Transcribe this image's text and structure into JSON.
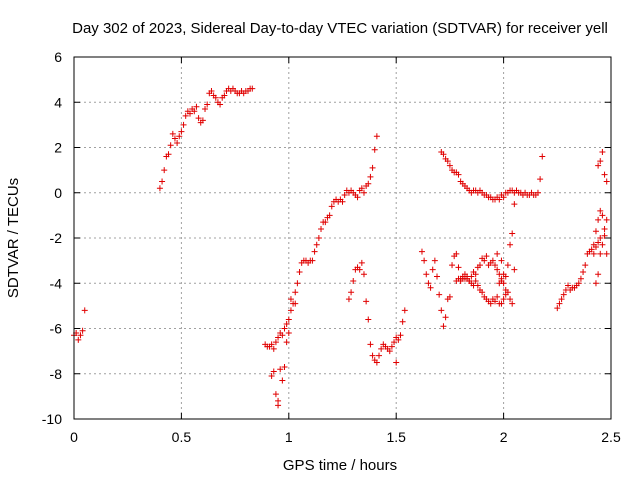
{
  "chart_data": {
    "type": "scatter",
    "title": "Day 302 of 2023, Sidereal Day-to-day VTEC variation (SDTVAR) for receiver yell",
    "xlabel": "GPS time / hours",
    "ylabel": "SDTVAR / TECUs",
    "xlim": [
      0,
      2.5
    ],
    "ylim": [
      -10,
      6
    ],
    "xticks": [
      0,
      0.5,
      1,
      1.5,
      2,
      2.5
    ],
    "xtick_labels": [
      "0",
      "0.5",
      "1",
      "1.5",
      "2",
      "2.5"
    ],
    "yticks": [
      -10,
      -8,
      -6,
      -4,
      -2,
      0,
      2,
      4,
      6
    ],
    "ytick_labels": [
      "-10",
      "-8",
      "-6",
      "-4",
      "-2",
      "0",
      "2",
      "4",
      "6"
    ],
    "grid": true,
    "marker": "plus",
    "color": "#e00000",
    "series": [
      {
        "name": "SDTVAR",
        "points": [
          [
            0.0,
            -6.3
          ],
          [
            0.01,
            -6.2
          ],
          [
            0.02,
            -6.5
          ],
          [
            0.03,
            -6.3
          ],
          [
            0.04,
            -6.1
          ],
          [
            0.05,
            -5.2
          ],
          [
            0.4,
            0.2
          ],
          [
            0.41,
            0.5
          ],
          [
            0.42,
            1.0
          ],
          [
            0.43,
            1.6
          ],
          [
            0.44,
            1.7
          ],
          [
            0.45,
            2.1
          ],
          [
            0.46,
            2.6
          ],
          [
            0.47,
            2.4
          ],
          [
            0.48,
            2.2
          ],
          [
            0.49,
            2.5
          ],
          [
            0.5,
            2.7
          ],
          [
            0.51,
            3.0
          ],
          [
            0.52,
            3.4
          ],
          [
            0.53,
            3.6
          ],
          [
            0.54,
            3.5
          ],
          [
            0.55,
            3.7
          ],
          [
            0.56,
            3.6
          ],
          [
            0.57,
            3.8
          ],
          [
            0.58,
            3.3
          ],
          [
            0.59,
            3.1
          ],
          [
            0.6,
            3.2
          ],
          [
            0.61,
            3.7
          ],
          [
            0.62,
            3.9
          ],
          [
            0.63,
            4.4
          ],
          [
            0.64,
            4.5
          ],
          [
            0.65,
            4.3
          ],
          [
            0.66,
            4.2
          ],
          [
            0.67,
            4.0
          ],
          [
            0.68,
            3.9
          ],
          [
            0.69,
            4.2
          ],
          [
            0.7,
            4.3
          ],
          [
            0.71,
            4.5
          ],
          [
            0.72,
            4.6
          ],
          [
            0.73,
            4.5
          ],
          [
            0.74,
            4.6
          ],
          [
            0.75,
            4.5
          ],
          [
            0.76,
            4.4
          ],
          [
            0.77,
            4.4
          ],
          [
            0.78,
            4.5
          ],
          [
            0.79,
            4.4
          ],
          [
            0.8,
            4.5
          ],
          [
            0.81,
            4.5
          ],
          [
            0.82,
            4.6
          ],
          [
            0.83,
            4.6
          ],
          [
            0.89,
            -6.7
          ],
          [
            0.9,
            -6.8
          ],
          [
            0.91,
            -6.8
          ],
          [
            0.92,
            -6.7
          ],
          [
            0.93,
            -6.9
          ],
          [
            0.94,
            -6.6
          ],
          [
            0.95,
            -6.4
          ],
          [
            0.96,
            -6.2
          ],
          [
            0.97,
            -6.3
          ],
          [
            0.98,
            -6.0
          ],
          [
            0.99,
            -5.8
          ],
          [
            1.0,
            -5.6
          ],
          [
            1.01,
            -5.2
          ],
          [
            1.02,
            -4.9
          ],
          [
            1.03,
            -4.4
          ],
          [
            1.04,
            -4.0
          ],
          [
            1.05,
            -3.5
          ],
          [
            1.06,
            -3.1
          ],
          [
            1.07,
            -3.0
          ],
          [
            1.08,
            -3.0
          ],
          [
            1.09,
            -3.1
          ],
          [
            1.1,
            -3.0
          ],
          [
            1.11,
            -3.0
          ],
          [
            1.12,
            -2.6
          ],
          [
            1.13,
            -2.3
          ],
          [
            1.14,
            -2.0
          ],
          [
            1.15,
            -1.6
          ],
          [
            1.16,
            -1.3
          ],
          [
            1.17,
            -1.3
          ],
          [
            1.18,
            -1.1
          ],
          [
            1.19,
            -1.0
          ],
          [
            1.2,
            -0.6
          ],
          [
            1.21,
            -0.4
          ],
          [
            1.22,
            -0.3
          ],
          [
            1.23,
            -0.4
          ],
          [
            1.24,
            -0.3
          ],
          [
            1.25,
            -0.4
          ],
          [
            1.26,
            -0.1
          ],
          [
            1.27,
            0.1
          ],
          [
            1.28,
            0.0
          ],
          [
            1.29,
            0.1
          ],
          [
            1.3,
            0.0
          ],
          [
            1.31,
            -0.1
          ],
          [
            1.32,
            -0.2
          ],
          [
            1.33,
            0.1
          ],
          [
            1.34,
            0.2
          ],
          [
            1.35,
            0.0
          ],
          [
            1.36,
            0.3
          ],
          [
            1.37,
            0.4
          ],
          [
            1.38,
            0.7
          ],
          [
            1.39,
            1.1
          ],
          [
            1.4,
            1.9
          ],
          [
            1.41,
            2.5
          ],
          [
            0.92,
            -8.1
          ],
          [
            0.93,
            -7.9
          ],
          [
            0.94,
            -8.9
          ],
          [
            0.95,
            -9.4
          ],
          [
            0.95,
            -9.2
          ],
          [
            0.96,
            -7.8
          ],
          [
            0.97,
            -8.3
          ],
          [
            0.98,
            -7.7
          ],
          [
            0.99,
            -6.6
          ],
          [
            1.0,
            -6.2
          ],
          [
            1.01,
            -4.7
          ],
          [
            1.03,
            -4.9
          ],
          [
            1.28,
            -4.7
          ],
          [
            1.29,
            -4.4
          ],
          [
            1.3,
            -3.9
          ],
          [
            1.31,
            -3.4
          ],
          [
            1.32,
            -3.3
          ],
          [
            1.33,
            -3.4
          ],
          [
            1.34,
            -3.1
          ],
          [
            1.35,
            -3.6
          ],
          [
            1.36,
            -4.8
          ],
          [
            1.37,
            -5.6
          ],
          [
            1.38,
            -6.7
          ],
          [
            1.39,
            -7.2
          ],
          [
            1.4,
            -7.4
          ],
          [
            1.41,
            -7.5
          ],
          [
            1.42,
            -7.2
          ],
          [
            1.43,
            -6.9
          ],
          [
            1.44,
            -6.7
          ],
          [
            1.45,
            -6.8
          ],
          [
            1.46,
            -6.9
          ],
          [
            1.47,
            -7.0
          ],
          [
            1.48,
            -6.8
          ],
          [
            1.49,
            -6.6
          ],
          [
            1.5,
            -6.4
          ],
          [
            1.51,
            -6.5
          ],
          [
            1.52,
            -6.3
          ],
          [
            1.53,
            -5.7
          ],
          [
            1.54,
            -5.2
          ],
          [
            1.5,
            -7.5
          ],
          [
            1.62,
            -2.6
          ],
          [
            1.63,
            -3.0
          ],
          [
            1.64,
            -3.6
          ],
          [
            1.65,
            -4.0
          ],
          [
            1.66,
            -4.2
          ],
          [
            1.67,
            -3.4
          ],
          [
            1.68,
            -3.0
          ],
          [
            1.69,
            -3.7
          ],
          [
            1.7,
            -4.5
          ],
          [
            1.71,
            -5.2
          ],
          [
            1.72,
            -5.9
          ],
          [
            1.73,
            -5.5
          ],
          [
            1.74,
            -4.7
          ],
          [
            1.75,
            -4.6
          ],
          [
            1.76,
            -3.2
          ],
          [
            1.77,
            -2.8
          ],
          [
            1.78,
            -2.7
          ],
          [
            1.79,
            -3.3
          ],
          [
            1.8,
            -3.9
          ],
          [
            1.81,
            -3.8
          ],
          [
            1.82,
            -3.6
          ],
          [
            1.83,
            -3.7
          ],
          [
            1.84,
            -3.9
          ],
          [
            1.85,
            -3.7
          ],
          [
            1.86,
            -3.5
          ],
          [
            1.87,
            -3.6
          ],
          [
            1.88,
            -3.3
          ],
          [
            1.89,
            -3.2
          ],
          [
            1.9,
            -2.9
          ],
          [
            1.91,
            -3.0
          ],
          [
            1.92,
            -2.8
          ],
          [
            1.93,
            -3.2
          ],
          [
            1.94,
            -3.1
          ],
          [
            1.95,
            -3.0
          ],
          [
            1.96,
            -3.2
          ],
          [
            1.97,
            -3.4
          ],
          [
            1.98,
            -3.6
          ],
          [
            1.99,
            -3.8
          ],
          [
            2.0,
            -4.0
          ],
          [
            2.01,
            -3.7
          ],
          [
            2.02,
            -3.2
          ],
          [
            2.03,
            -2.3
          ],
          [
            2.04,
            -1.8
          ],
          [
            2.05,
            -3.4
          ],
          [
            1.87,
            -3.9
          ],
          [
            1.88,
            -4.1
          ],
          [
            1.89,
            -4.3
          ],
          [
            1.9,
            -4.4
          ],
          [
            1.91,
            -4.6
          ],
          [
            1.92,
            -4.7
          ],
          [
            1.93,
            -4.8
          ],
          [
            1.94,
            -4.9
          ],
          [
            1.95,
            -4.7
          ],
          [
            1.96,
            -4.8
          ],
          [
            1.97,
            -4.6
          ],
          [
            1.98,
            -4.9
          ],
          [
            1.99,
            -4.9
          ],
          [
            2.0,
            -4.7
          ],
          [
            2.01,
            -4.5
          ],
          [
            2.02,
            -4.4
          ],
          [
            2.03,
            -4.7
          ],
          [
            2.04,
            -4.9
          ],
          [
            1.78,
            -3.9
          ],
          [
            1.79,
            -3.8
          ],
          [
            1.8,
            -3.8
          ],
          [
            1.81,
            -3.7
          ],
          [
            1.82,
            -3.8
          ],
          [
            1.83,
            -3.8
          ],
          [
            1.84,
            -3.9
          ],
          [
            1.85,
            -4.0
          ],
          [
            1.86,
            -4.1
          ],
          [
            1.98,
            -4.0
          ],
          [
            1.99,
            -3.9
          ],
          [
            2.0,
            -3.6
          ],
          [
            2.01,
            -4.3
          ],
          [
            1.97,
            -2.7
          ],
          [
            1.99,
            -3.0
          ],
          [
            1.71,
            1.8
          ],
          [
            1.72,
            1.7
          ],
          [
            1.73,
            1.5
          ],
          [
            1.74,
            1.4
          ],
          [
            1.75,
            1.2
          ],
          [
            1.76,
            1.0
          ],
          [
            1.77,
            0.9
          ],
          [
            1.78,
            0.9
          ],
          [
            1.79,
            0.8
          ],
          [
            1.8,
            0.5
          ],
          [
            1.81,
            0.4
          ],
          [
            1.82,
            0.3
          ],
          [
            1.83,
            0.2
          ],
          [
            1.84,
            0.1
          ],
          [
            1.85,
            0.0
          ],
          [
            1.86,
            0.1
          ],
          [
            1.87,
            0.1
          ],
          [
            1.88,
            0.0
          ],
          [
            1.89,
            0.1
          ],
          [
            1.9,
            0.0
          ],
          [
            1.91,
            -0.1
          ],
          [
            1.92,
            -0.1
          ],
          [
            1.93,
            -0.2
          ],
          [
            1.94,
            -0.2
          ],
          [
            1.95,
            -0.3
          ],
          [
            1.96,
            -0.3
          ],
          [
            1.97,
            -0.2
          ],
          [
            1.98,
            -0.3
          ],
          [
            1.99,
            -0.1
          ],
          [
            2.0,
            -0.2
          ],
          [
            2.01,
            0.0
          ],
          [
            2.02,
            0.0
          ],
          [
            2.03,
            0.1
          ],
          [
            2.04,
            0.1
          ],
          [
            2.05,
            0.0
          ],
          [
            2.06,
            0.1
          ],
          [
            2.07,
            0.0
          ],
          [
            2.08,
            0.0
          ],
          [
            2.09,
            -0.1
          ],
          [
            2.1,
            0.0
          ],
          [
            2.11,
            -0.1
          ],
          [
            2.12,
            -0.1
          ],
          [
            2.13,
            0.0
          ],
          [
            2.14,
            -0.1
          ],
          [
            2.15,
            -0.1
          ],
          [
            2.16,
            0.0
          ],
          [
            2.17,
            0.6
          ],
          [
            2.18,
            1.6
          ],
          [
            2.05,
            -0.5
          ],
          [
            2.25,
            -5.1
          ],
          [
            2.26,
            -4.9
          ],
          [
            2.27,
            -4.7
          ],
          [
            2.28,
            -4.5
          ],
          [
            2.29,
            -4.3
          ],
          [
            2.3,
            -4.1
          ],
          [
            2.31,
            -4.3
          ],
          [
            2.32,
            -4.2
          ],
          [
            2.33,
            -4.2
          ],
          [
            2.34,
            -4.1
          ],
          [
            2.35,
            -4.0
          ],
          [
            2.36,
            -3.8
          ],
          [
            2.37,
            -3.5
          ],
          [
            2.38,
            -3.2
          ],
          [
            2.39,
            -2.7
          ],
          [
            2.4,
            -2.6
          ],
          [
            2.41,
            -2.5
          ],
          [
            2.42,
            -2.3
          ],
          [
            2.43,
            -1.7
          ],
          [
            2.44,
            -1.2
          ],
          [
            2.45,
            -0.8
          ],
          [
            2.46,
            -1.0
          ],
          [
            2.47,
            -1.9
          ],
          [
            2.48,
            -2.7
          ],
          [
            2.43,
            -4.0
          ],
          [
            2.44,
            -3.6
          ],
          [
            2.45,
            -2.7
          ],
          [
            2.46,
            -2.3
          ],
          [
            2.47,
            -1.6
          ],
          [
            2.48,
            -1.2
          ],
          [
            2.44,
            1.2
          ],
          [
            2.45,
            1.4
          ],
          [
            2.46,
            1.8
          ],
          [
            2.47,
            0.8
          ],
          [
            2.48,
            0.5
          ],
          [
            2.42,
            -2.7
          ],
          [
            2.43,
            -2.4
          ],
          [
            2.44,
            -2.2
          ],
          [
            2.45,
            -2.0
          ]
        ]
      }
    ]
  }
}
